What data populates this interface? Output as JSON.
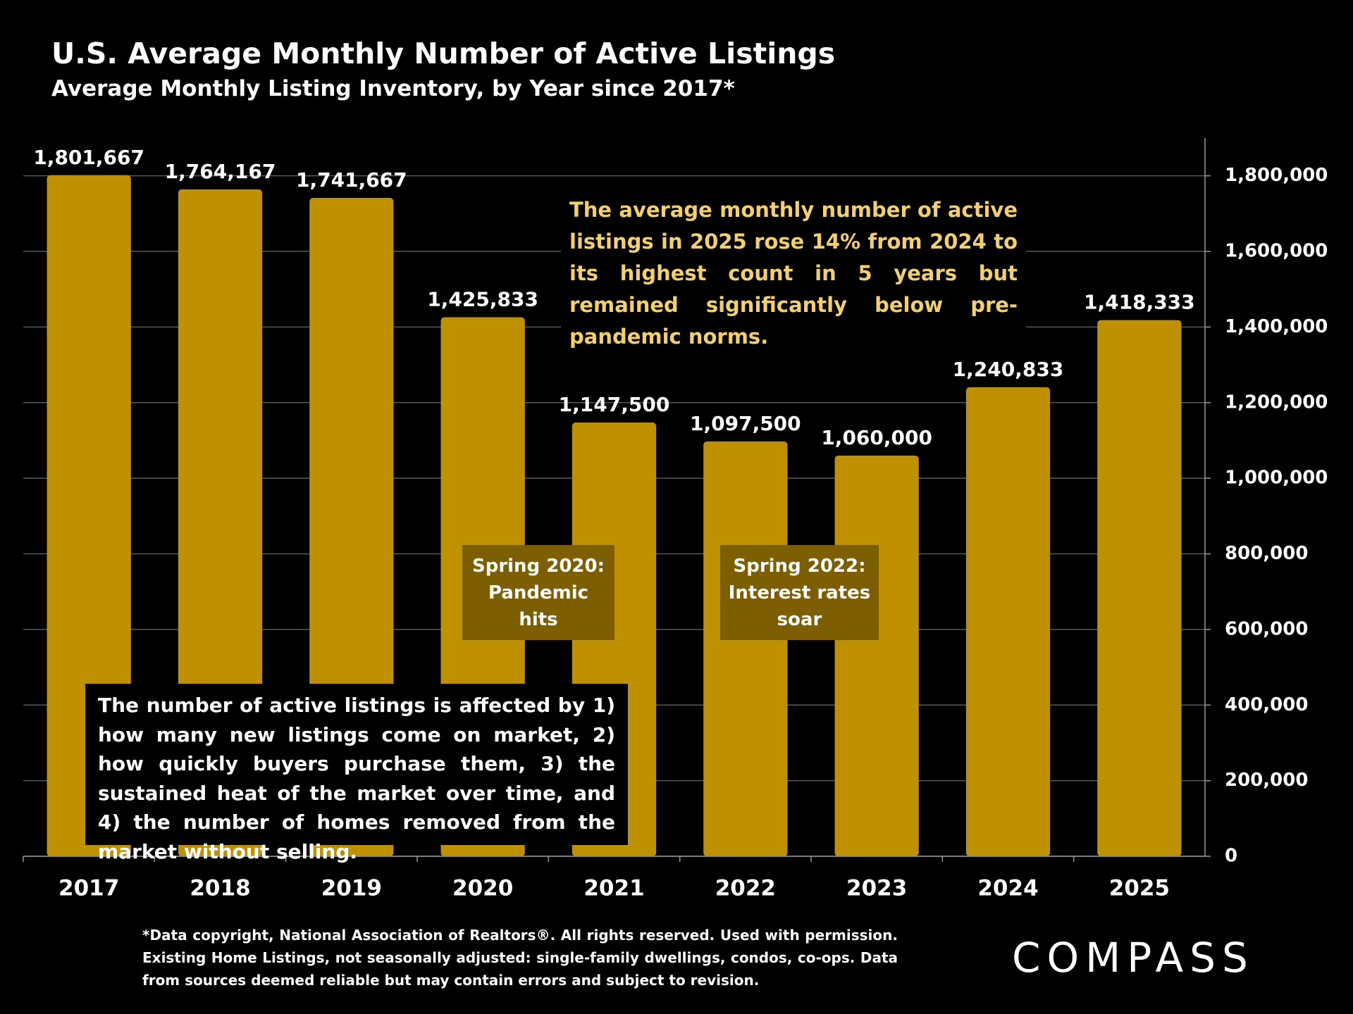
{
  "chart_data": {
    "type": "bar",
    "title": "U.S. Average Monthly Number of Active Listings",
    "subtitle": "Average Monthly Listing Inventory, by Year since 2017*",
    "categories": [
      "2017",
      "2018",
      "2019",
      "2020",
      "2021",
      "2022",
      "2023",
      "2024",
      "2025"
    ],
    "values": [
      1801667,
      1764167,
      1741667,
      1425833,
      1147500,
      1097500,
      1060000,
      1240833,
      1418333
    ],
    "value_labels": [
      "1,801,667",
      "1,764,167",
      "1,741,667",
      "1,425,833",
      "1,147,500",
      "1,097,500",
      "1,060,000",
      "1,240,833",
      "1,418,333"
    ],
    "color": "#bf9000",
    "ylim": [
      0,
      1900000
    ],
    "yticks": [
      0,
      {
        "value": 200000,
        "label": "200,000"
      },
      {
        "value": 400000,
        "label": "400,000"
      },
      {
        "value": 600000,
        "label": "600,000"
      },
      {
        "value": 800000,
        "label": "800,000"
      },
      {
        "value": 1000000,
        "label": "1,000,000"
      },
      {
        "value": 1200000,
        "label": "1,200,000"
      },
      {
        "value": 1400000,
        "label": "1,400,000"
      },
      {
        "value": 1600000,
        "label": "1,600,000"
      },
      {
        "value": 1800000,
        "label": "1,800,000"
      }
    ],
    "y_axis_side": "right",
    "grid": true,
    "annotations": [
      "The average monthly number of active listings in 2025 rose 14% from 2024 to its highest count in 5 years but remained significantly below pre-pandemic norms.",
      "Spring 2020: Pandemic hits",
      "Spring 2022: Interest rates soar",
      "The number of active listings is affected by 1) how many new listings come on market, 2) how quickly buyers purchase them, 3) the sustained heat of the market over time, and 4) the number of homes removed from the market without selling."
    ],
    "footnote": "*Data copyright, National Association of Realtors®. All rights reserved. Used with permission. Existing Home Listings, not seasonally adjusted:  single-family dwellings, condos, co-ops. Data from sources deemed reliable but may contain errors and subject to revision.",
    "logo": "COMPASS"
  }
}
